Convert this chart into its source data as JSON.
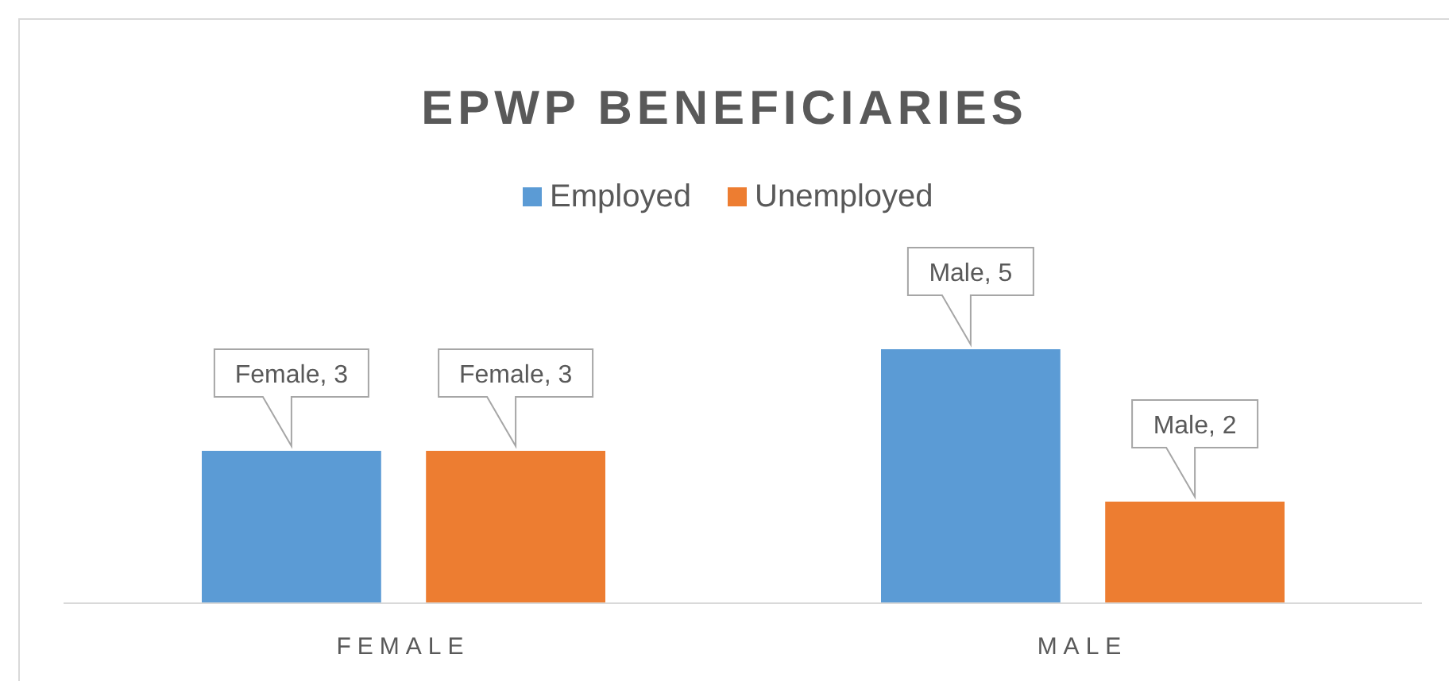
{
  "chart_data": {
    "type": "bar",
    "title": "EPWP BENEFICIARIES",
    "categories": [
      "FEMALE",
      "MALE"
    ],
    "series": [
      {
        "name": "Employed",
        "color": "#5b9bd5",
        "values": [
          3,
          5
        ],
        "value_labels": [
          "Female, 3",
          "Male, 5"
        ]
      },
      {
        "name": "Unemployed",
        "color": "#ed7d31",
        "values": [
          3,
          2
        ],
        "value_labels": [
          "Female, 3",
          "Male, 2"
        ]
      }
    ],
    "legend": "top",
    "grid": false
  }
}
